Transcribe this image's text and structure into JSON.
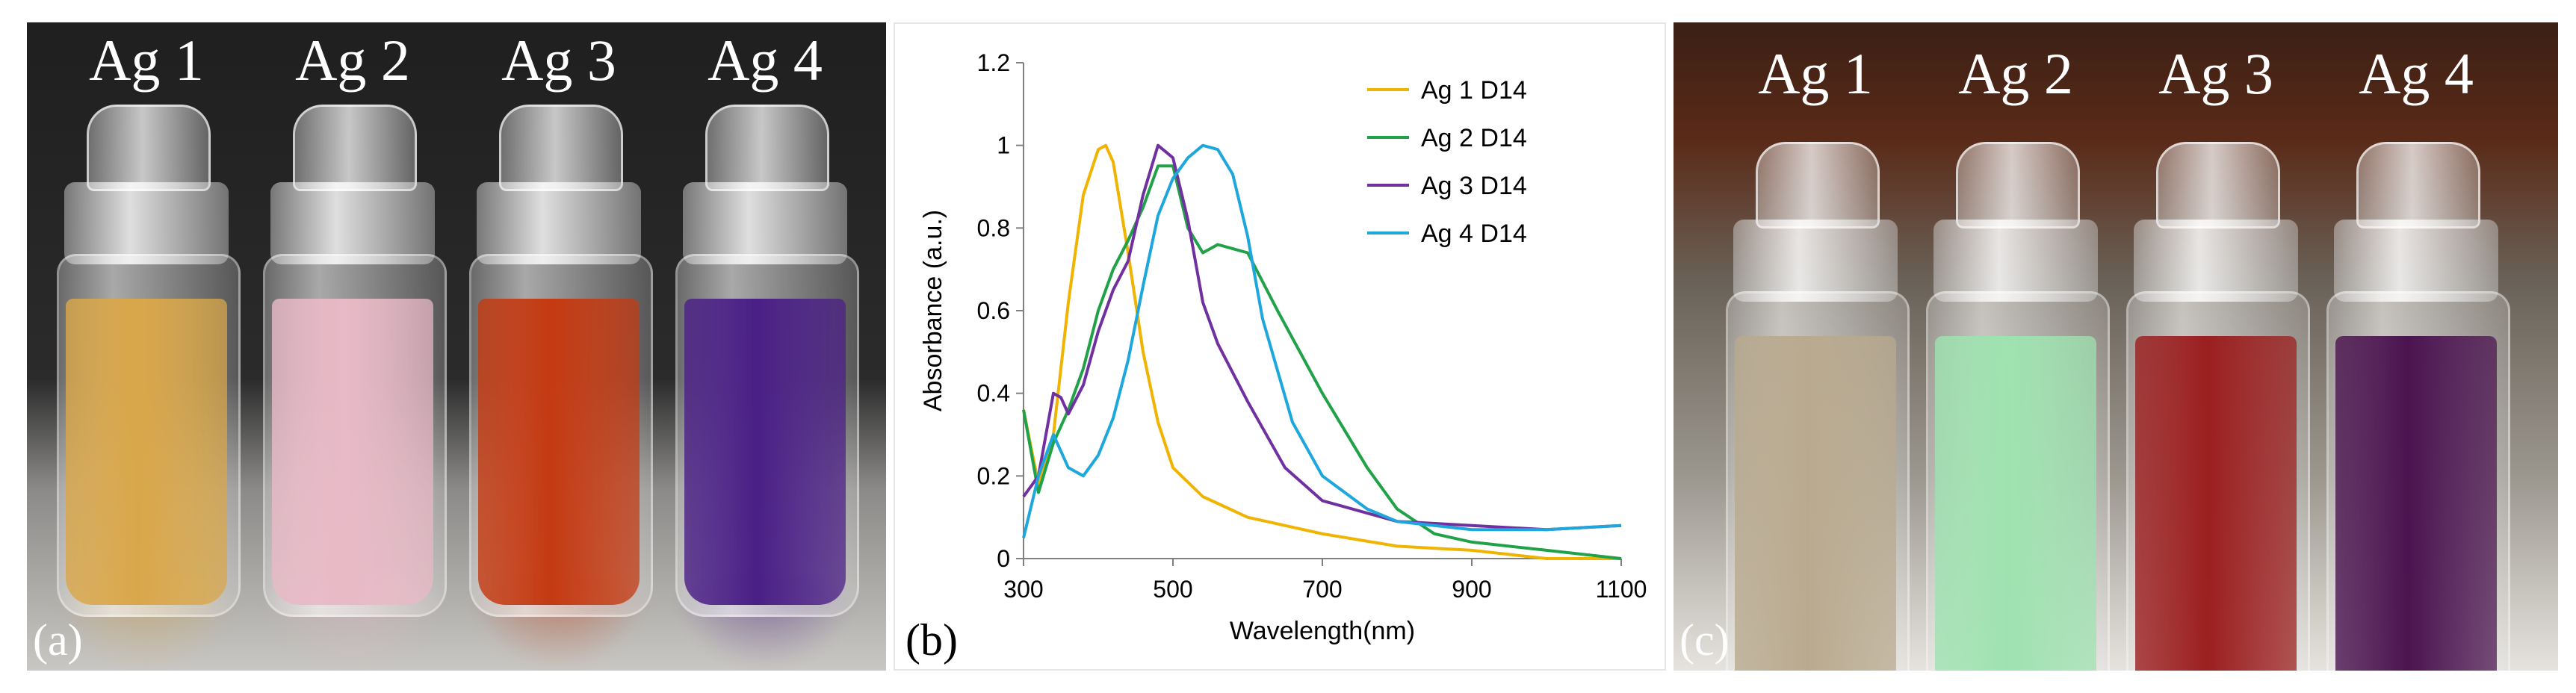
{
  "panel_a": {
    "letter": "(a)",
    "vials": [
      {
        "label": "Ag 1",
        "color": "#d9a74a"
      },
      {
        "label": "Ag 2",
        "color": "#e8b9c6"
      },
      {
        "label": "Ag 3",
        "color": "#c43a12"
      },
      {
        "label": "Ag 4",
        "color": "#4a1f86"
      }
    ]
  },
  "panel_c": {
    "letter": "(c)",
    "vials": [
      {
        "label": "Ag 1",
        "color": "#b9aa8f"
      },
      {
        "label": "Ag 2",
        "color": "#9fe2b0"
      },
      {
        "label": "Ag 3",
        "color": "#9b1f1f"
      },
      {
        "label": "Ag 4",
        "color": "#4b1450"
      }
    ]
  },
  "panel_b": {
    "letter": "(b)"
  },
  "chart_data": {
    "type": "line",
    "title": "",
    "xlabel": "Wavelength(nm)",
    "ylabel": "Absorbance (a.u.)",
    "xlim": [
      300,
      1100
    ],
    "ylim": [
      0,
      1.2
    ],
    "xticks": [
      "300",
      "500",
      "700",
      "900",
      "1100"
    ],
    "yticks": [
      "0",
      "0.2",
      "0.4",
      "0.6",
      "0.8",
      "1",
      "1.2"
    ],
    "legend_position": "top-right",
    "series": [
      {
        "name": "Ag 1 D14",
        "color": "#f0b400",
        "x": [
          300,
          320,
          340,
          360,
          380,
          400,
          410,
          420,
          440,
          460,
          480,
          500,
          540,
          600,
          700,
          800,
          900,
          1000,
          1100
        ],
        "y": [
          0.36,
          0.18,
          0.3,
          0.62,
          0.88,
          0.99,
          1.0,
          0.96,
          0.74,
          0.5,
          0.33,
          0.22,
          0.15,
          0.1,
          0.06,
          0.03,
          0.02,
          0.0,
          0.0
        ]
      },
      {
        "name": "Ag 2 D14",
        "color": "#21a148",
        "x": [
          300,
          320,
          340,
          360,
          380,
          400,
          420,
          440,
          460,
          480,
          500,
          520,
          540,
          560,
          600,
          640,
          700,
          760,
          800,
          850,
          900,
          1000,
          1100
        ],
        "y": [
          0.36,
          0.16,
          0.28,
          0.36,
          0.46,
          0.6,
          0.7,
          0.77,
          0.85,
          0.95,
          0.95,
          0.8,
          0.74,
          0.76,
          0.74,
          0.6,
          0.4,
          0.22,
          0.12,
          0.06,
          0.04,
          0.02,
          0.0
        ]
      },
      {
        "name": "Ag 3 D14",
        "color": "#7030a0",
        "x": [
          300,
          320,
          340,
          350,
          360,
          380,
          400,
          420,
          440,
          460,
          480,
          500,
          520,
          540,
          560,
          600,
          650,
          700,
          800,
          900,
          1000,
          1100
        ],
        "y": [
          0.15,
          0.2,
          0.4,
          0.39,
          0.35,
          0.42,
          0.55,
          0.65,
          0.72,
          0.88,
          1.0,
          0.97,
          0.82,
          0.62,
          0.52,
          0.38,
          0.22,
          0.14,
          0.09,
          0.08,
          0.07,
          0.08
        ]
      },
      {
        "name": "Ag 4 D14",
        "color": "#1ea7dd",
        "x": [
          300,
          320,
          340,
          360,
          380,
          400,
          420,
          440,
          460,
          480,
          500,
          520,
          540,
          560,
          580,
          600,
          620,
          660,
          700,
          760,
          800,
          900,
          1000,
          1100
        ],
        "y": [
          0.05,
          0.2,
          0.3,
          0.22,
          0.2,
          0.25,
          0.34,
          0.48,
          0.66,
          0.83,
          0.92,
          0.97,
          1.0,
          0.99,
          0.93,
          0.78,
          0.58,
          0.33,
          0.2,
          0.12,
          0.09,
          0.07,
          0.07,
          0.08
        ]
      }
    ]
  }
}
